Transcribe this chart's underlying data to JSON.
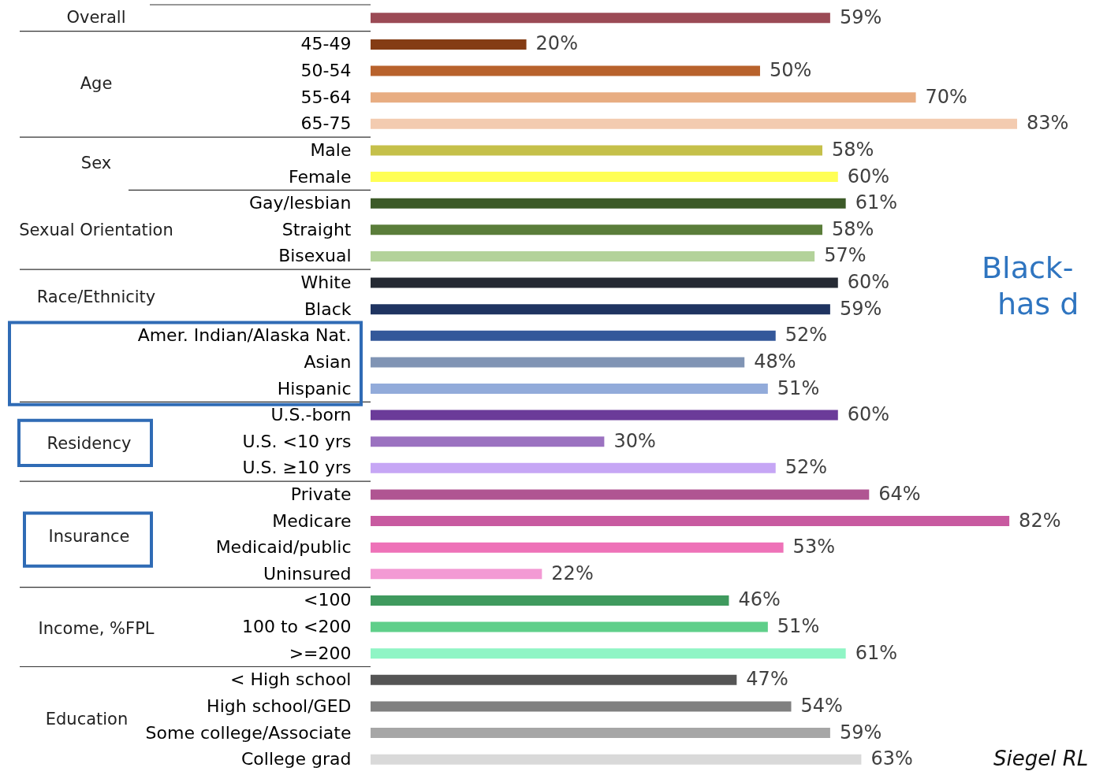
{
  "chart_data": {
    "type": "bar",
    "orientation": "horizontal",
    "categories": [
      null,
      "45-49",
      "50-54",
      "55-64",
      "65-75",
      "Male",
      "Female",
      "Gay/lesbian",
      "Straight",
      "Bisexual",
      "White",
      "Black",
      "Amer. Indian/Alaska Nat.",
      "Asian",
      "Hispanic",
      "U.S.-born",
      "U.S. <10 yrs",
      "U.S. ≥10 yrs",
      "Private",
      "Medicare",
      "Medicaid/public",
      "Uninsured",
      "<100",
      "100 to <200",
      ">=200",
      "< High school",
      "High school/GED",
      "Some college/Associate",
      "College grad"
    ],
    "values": [
      59,
      20,
      50,
      70,
      83,
      58,
      60,
      61,
      58,
      57,
      60,
      59,
      52,
      48,
      51,
      60,
      30,
      52,
      64,
      82,
      53,
      22,
      46,
      51,
      61,
      47,
      54,
      59,
      63
    ],
    "value_labels": [
      "59%",
      "20%",
      "50%",
      "70%",
      "83%",
      "58%",
      "60%",
      "61%",
      "58%",
      "57%",
      "60%",
      "59%",
      "52%",
      "48%",
      "51%",
      "60%",
      "30%",
      "52%",
      "64%",
      "82%",
      "53%",
      "22%",
      "46%",
      "51%",
      "61%",
      "47%",
      "54%",
      "59%",
      "63%"
    ],
    "colors": [
      "#9b4a55",
      "#843c14",
      "#b8622c",
      "#e8ad82",
      "#f3cbb0",
      "#c5c04a",
      "#ffff55",
      "#3c5a28",
      "#5a7d3a",
      "#b3d29a",
      "#252a33",
      "#1f3461",
      "#34589a",
      "#8094b4",
      "#92abda",
      "#6b3b99",
      "#9b72c0",
      "#c6a6f5",
      "#b05592",
      "#c85aa0",
      "#ee72b8",
      "#f39ad4",
      "#3f9a5e",
      "#5fcf8a",
      "#8ff5c5",
      "#555555",
      "#808080",
      "#a6a6a6",
      "#d9d9d9"
    ],
    "tick_labels": "y",
    "annotations": [
      "Overall",
      "Age",
      "Sex",
      "Sexual Orientation",
      "Race/Ethnicity",
      "Residency",
      "Insurance",
      "Income, %FPL",
      "Education",
      "Black-",
      "has d",
      "Siegel RL"
    ]
  }
}
